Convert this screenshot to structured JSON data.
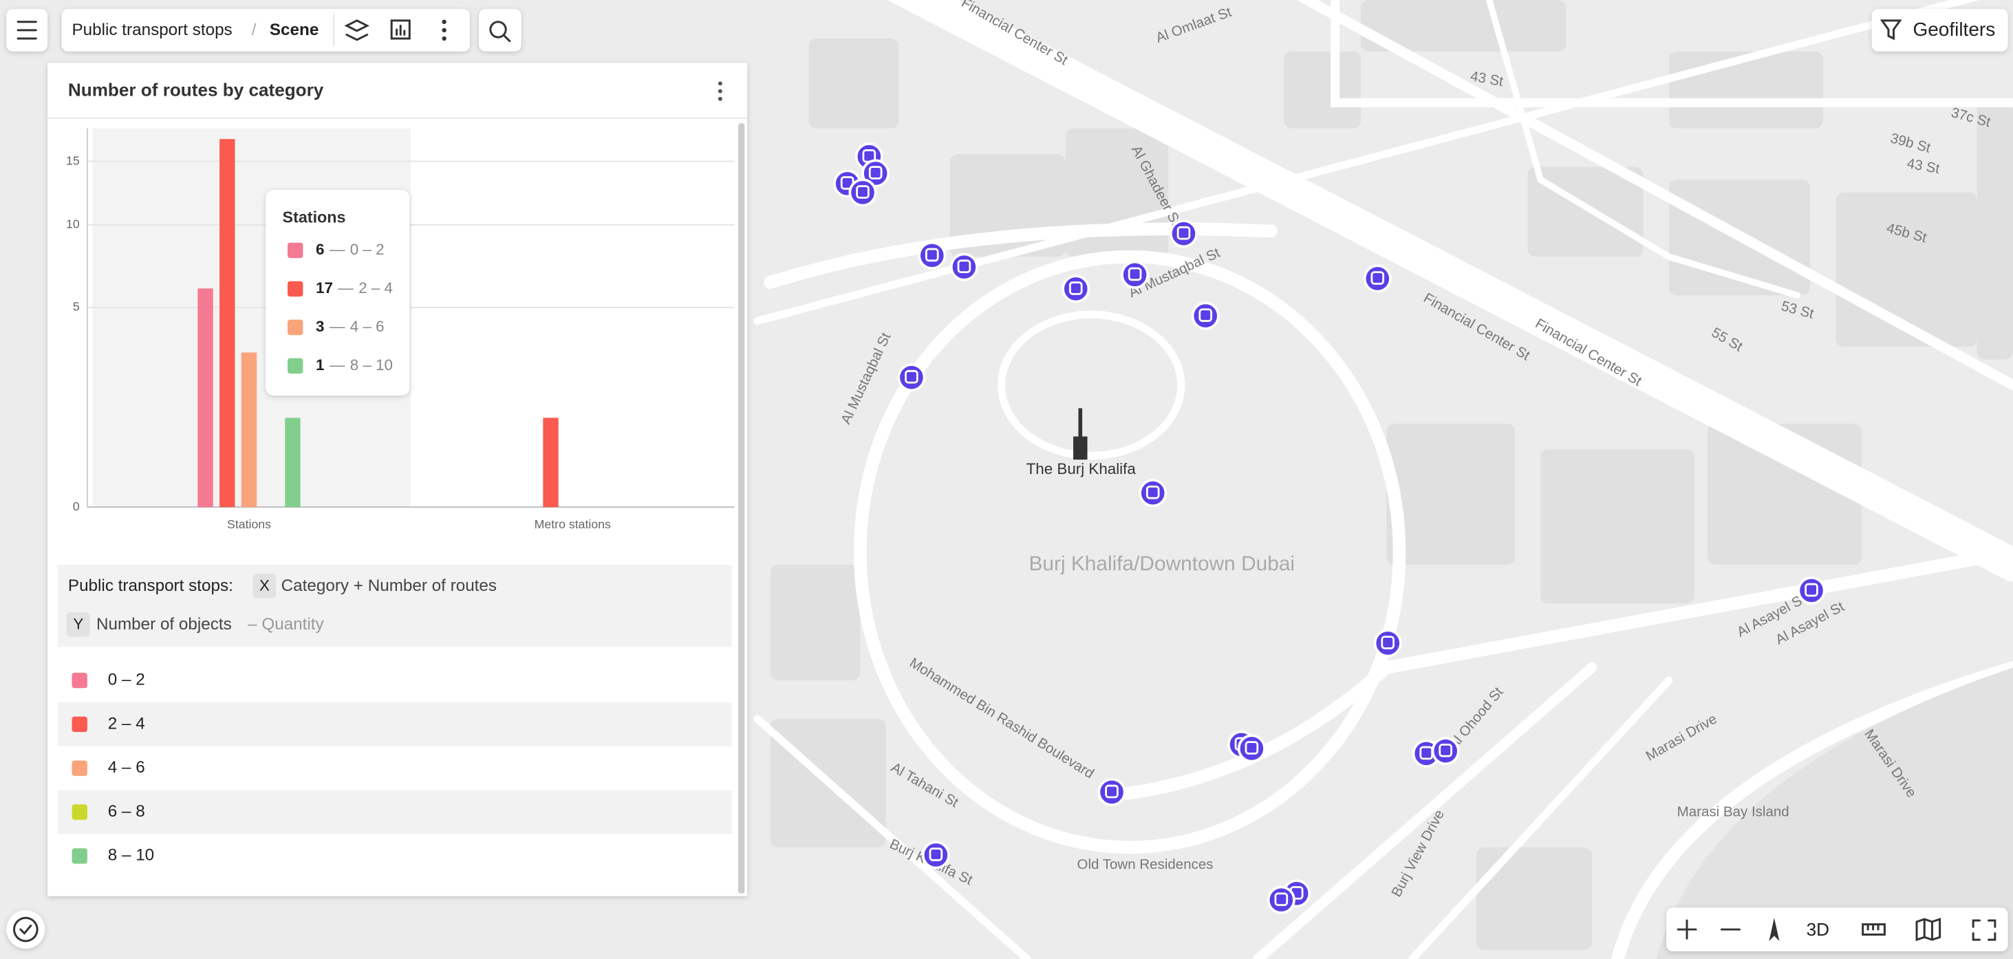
{
  "toolbar": {
    "breadcrumb": [
      "Public transport stops",
      "Scene"
    ],
    "separator": "/",
    "geofilters": "Geofilters"
  },
  "map_controls": {
    "mode": "3D"
  },
  "map": {
    "labels": [
      "Financial Center St",
      "Al Omlaat St",
      "43 St",
      "43 St",
      "39b St",
      "37c St",
      "Al Ghadeer St",
      "Al Mustaqbal St",
      "Al Mustaqbal St",
      "45b St",
      "53 St",
      "55 St",
      "Financial Center St",
      "Financial Center St",
      "The Burj Khalifa",
      "Burj Khalifa/Downtown Dubai",
      "Mohammed Bin Rashid Boulevard",
      "Al Tahani St",
      "Burj Khalifa St",
      "Old Town Residences",
      "Al Asayel St",
      "Al Asayel St",
      "Al Ohood St",
      "Burj View Drive",
      "Marasi Drive",
      "Marasi Drive",
      "Marasi Bay Island"
    ]
  },
  "chart_data": {
    "type": "bar",
    "title": "Number of routes by category",
    "categories": [
      "Stations",
      "Metro stations"
    ],
    "series": [
      {
        "name": "0 – 2",
        "color": "#f47a93",
        "values": [
          6,
          null
        ]
      },
      {
        "name": "2 – 4",
        "color": "#fa5a4f",
        "values": [
          17,
          1
        ]
      },
      {
        "name": "4 – 6",
        "color": "#f9a47b",
        "values": [
          3,
          null
        ]
      },
      {
        "name": "6 – 8",
        "color": "#c9d92b",
        "values": [
          null,
          null
        ]
      },
      {
        "name": "8 – 10",
        "color": "#82cf8d",
        "values": [
          1,
          null
        ]
      }
    ],
    "ylim": [
      0,
      18
    ],
    "yticks": [
      0,
      5,
      10,
      15
    ],
    "scale": "sqrt",
    "grid": true,
    "tooltip_separator": "—"
  },
  "layer_info": {
    "layer": "Public transport stops:",
    "x_chip": "X",
    "x_label": "Category + Number of routes",
    "y_chip": "Y",
    "y_label": "Number of objects",
    "y_aggregation": "– Quantity"
  }
}
